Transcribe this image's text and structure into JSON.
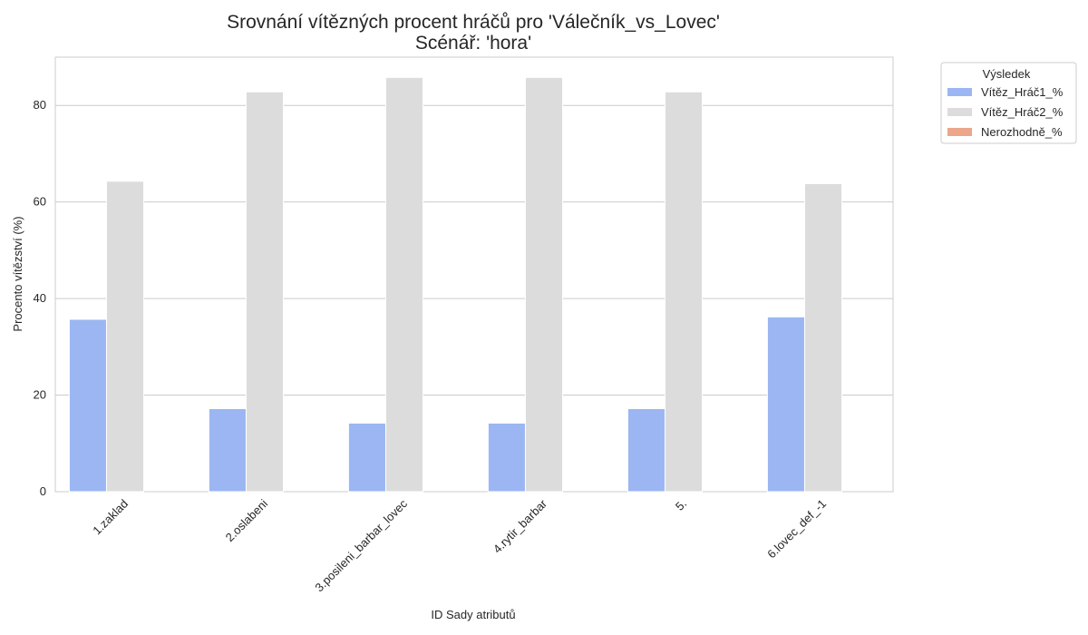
{
  "chart_data": {
    "type": "bar",
    "title": "Srovnání vítězných procent hráčů pro 'Válečník_vs_Lovec'",
    "subtitle": "Scénář: 'hora'",
    "xlabel": "ID Sady atributů",
    "ylabel": "Procento vítězství (%)",
    "ylim": [
      0,
      90
    ],
    "yticks": [
      "0",
      "20",
      "40",
      "60",
      "80"
    ],
    "grid": true,
    "legend": {
      "title": "Výsledek",
      "placement": "outside-top-right"
    },
    "categories": [
      "1.zaklad",
      "2.oslabeni",
      "3.posileni_barbar_lovec",
      "4.rytir_barbar",
      "5.",
      "6.lovec_def_-1"
    ],
    "series": [
      {
        "name": "Vítěz_Hráč1_%",
        "color": "#9bb6f2",
        "values": [
          35.7,
          17.2,
          14.2,
          14.2,
          17.2,
          36.2
        ]
      },
      {
        "name": "Vítěz_Hráč2_%",
        "color": "#dcdcdc",
        "values": [
          64.3,
          82.8,
          85.8,
          85.8,
          82.8,
          63.8
        ]
      },
      {
        "name": "Nerozhodně_%",
        "color": "#eba68b",
        "values": [
          0,
          0,
          0,
          0,
          0,
          0
        ]
      }
    ]
  }
}
